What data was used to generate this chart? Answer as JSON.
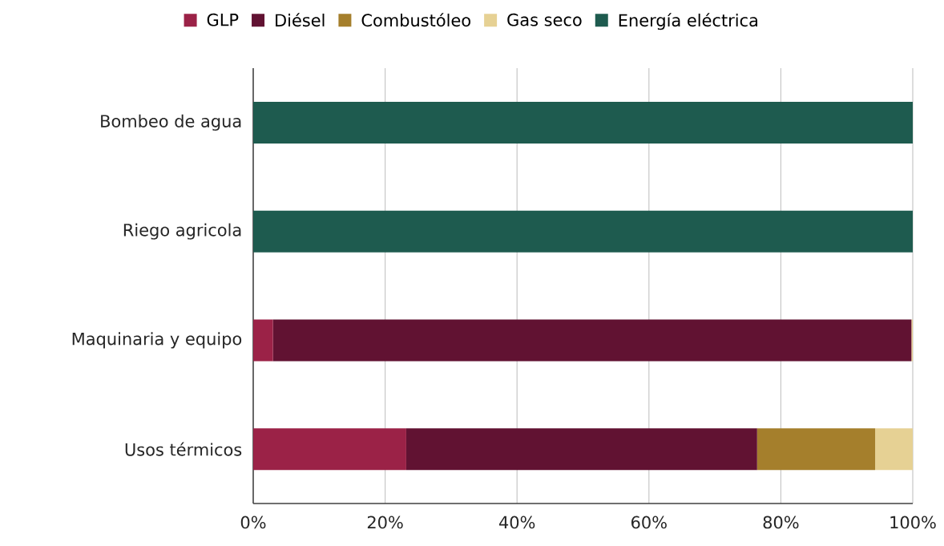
{
  "chart_data": {
    "type": "bar",
    "orientation": "horizontal",
    "stacked": true,
    "categories": [
      "Bombeo de agua",
      "Riego agricola",
      "Maquinaria y equipo",
      "Usos térmicos"
    ],
    "series": [
      {
        "name": "GLP",
        "color": "#9b2247",
        "values": [
          0,
          0,
          3.0,
          23.2
        ]
      },
      {
        "name": "Diésel",
        "color": "#611232",
        "values": [
          0,
          0,
          96.8,
          53.2
        ]
      },
      {
        "name": "Combustóleo",
        "color": "#a57f2c",
        "values": [
          0,
          0,
          0,
          17.9
        ]
      },
      {
        "name": "Gas seco",
        "color": "#e6d194",
        "values": [
          0,
          0,
          0.2,
          5.7
        ]
      },
      {
        "name": "Energía eléctrica",
        "color": "#1e5b4f",
        "values": [
          100,
          100,
          0,
          0
        ]
      }
    ],
    "xlim": [
      0,
      100
    ],
    "xticks": [
      {
        "value": 0,
        "label": "0%"
      },
      {
        "value": 20,
        "label": "20%"
      },
      {
        "value": 40,
        "label": "40%"
      },
      {
        "value": 60,
        "label": "60%"
      },
      {
        "value": 80,
        "label": "80%"
      },
      {
        "value": 100,
        "label": "100%"
      }
    ],
    "grid": "x",
    "legend": "top"
  }
}
